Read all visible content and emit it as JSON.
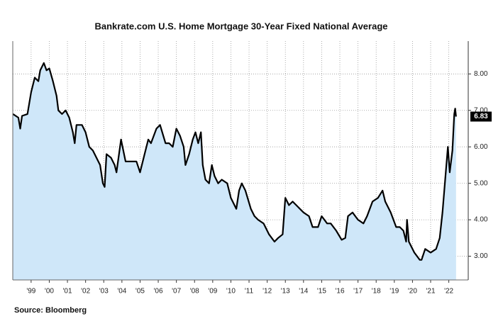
{
  "chart_data": {
    "type": "area",
    "title": "Bankrate.com U.S. Home Mortgage 30-Year Fixed National Average",
    "source": "Source: Bloomberg",
    "current_label": "6.83",
    "color": "#000000",
    "fill_color": "#cfe7f9",
    "grid": true,
    "ylim": [
      2.35,
      8.9
    ],
    "yticks": [
      {
        "value": 3,
        "label": "3.00"
      },
      {
        "value": 4,
        "label": "4.00"
      },
      {
        "value": 5,
        "label": "5.00"
      },
      {
        "value": 6,
        "label": "6.00"
      },
      {
        "value": 7,
        "label": "7.00"
      },
      {
        "value": 8,
        "label": "8.00"
      }
    ],
    "xlim": [
      1998.49,
      2023.57
    ],
    "xticks": [
      {
        "value": 1999.5,
        "label": "'99"
      },
      {
        "value": 2000.5,
        "label": "'00"
      },
      {
        "value": 2001.5,
        "label": "'01"
      },
      {
        "value": 2002.5,
        "label": "'02"
      },
      {
        "value": 2003.5,
        "label": "'03"
      },
      {
        "value": 2004.5,
        "label": "'04"
      },
      {
        "value": 2005.5,
        "label": "'05"
      },
      {
        "value": 2006.5,
        "label": "'06"
      },
      {
        "value": 2007.5,
        "label": "'07"
      },
      {
        "value": 2008.5,
        "label": "'08"
      },
      {
        "value": 2009.5,
        "label": "'09"
      },
      {
        "value": 2010.5,
        "label": "'10"
      },
      {
        "value": 2011.5,
        "label": "'11"
      },
      {
        "value": 2012.5,
        "label": "'12"
      },
      {
        "value": 2013.5,
        "label": "'13"
      },
      {
        "value": 2014.5,
        "label": "'14"
      },
      {
        "value": 2015.5,
        "label": "'15"
      },
      {
        "value": 2016.5,
        "label": "'16"
      },
      {
        "value": 2017.5,
        "label": "'17"
      },
      {
        "value": 2018.5,
        "label": "'18"
      },
      {
        "value": 2019.5,
        "label": "'19"
      },
      {
        "value": 2020.5,
        "label": "'20"
      },
      {
        "value": 2021.5,
        "label": "'21"
      },
      {
        "value": 2022.5,
        "label": "'22"
      }
    ],
    "x": [
      1998.5,
      1998.8,
      1998.9,
      1999.0,
      1999.3,
      1999.5,
      1999.7,
      1999.9,
      2000.0,
      2000.2,
      2000.35,
      2000.5,
      2000.7,
      2000.9,
      2001.0,
      2001.2,
      2001.4,
      2001.6,
      2001.8,
      2001.9,
      2002.0,
      2002.3,
      2002.5,
      2002.7,
      2002.9,
      2003.1,
      2003.3,
      2003.45,
      2003.55,
      2003.65,
      2003.9,
      2004.1,
      2004.2,
      2004.45,
      2004.7,
      2004.9,
      2005.1,
      2005.3,
      2005.5,
      2005.75,
      2005.95,
      2006.1,
      2006.4,
      2006.6,
      2006.9,
      2007.1,
      2007.3,
      2007.5,
      2007.7,
      2007.9,
      2008.0,
      2008.2,
      2008.4,
      2008.55,
      2008.7,
      2008.85,
      2008.95,
      2009.1,
      2009.3,
      2009.45,
      2009.6,
      2009.8,
      2010.0,
      2010.3,
      2010.5,
      2010.8,
      2010.95,
      2011.1,
      2011.3,
      2011.6,
      2011.8,
      2012.0,
      2012.3,
      2012.6,
      2012.9,
      2013.1,
      2013.35,
      2013.5,
      2013.7,
      2013.9,
      2014.1,
      2014.5,
      2014.8,
      2015.0,
      2015.3,
      2015.5,
      2015.8,
      2016.0,
      2016.3,
      2016.6,
      2016.8,
      2016.95,
      2017.2,
      2017.5,
      2017.8,
      2018.0,
      2018.3,
      2018.6,
      2018.85,
      2019.0,
      2019.3,
      2019.6,
      2019.8,
      2020.0,
      2020.15,
      2020.2,
      2020.3,
      2020.6,
      2020.9,
      2021.0,
      2021.2,
      2021.5,
      2021.8,
      2022.0,
      2022.15,
      2022.3,
      2022.45,
      2022.55,
      2022.7,
      2022.8,
      2022.85,
      2022.9
    ],
    "values": [
      6.9,
      6.8,
      6.5,
      6.85,
      6.9,
      7.5,
      7.9,
      7.8,
      8.1,
      8.3,
      8.1,
      8.15,
      7.8,
      7.4,
      7.0,
      6.9,
      7.0,
      6.8,
      6.4,
      6.1,
      6.6,
      6.6,
      6.4,
      6.0,
      5.9,
      5.7,
      5.5,
      5.0,
      4.9,
      5.8,
      5.7,
      5.5,
      5.3,
      6.2,
      5.6,
      5.6,
      5.6,
      5.6,
      5.3,
      5.8,
      6.2,
      6.1,
      6.5,
      6.6,
      6.1,
      6.1,
      6.0,
      6.5,
      6.3,
      6.0,
      5.5,
      5.8,
      6.2,
      6.4,
      6.1,
      6.4,
      5.5,
      5.1,
      5.0,
      5.5,
      5.2,
      5.0,
      5.1,
      5.0,
      4.6,
      4.3,
      4.8,
      5.0,
      4.8,
      4.3,
      4.1,
      4.0,
      3.9,
      3.6,
      3.4,
      3.5,
      3.6,
      4.6,
      4.4,
      4.5,
      4.4,
      4.2,
      4.1,
      3.8,
      3.8,
      4.1,
      3.9,
      3.9,
      3.7,
      3.45,
      3.5,
      4.1,
      4.2,
      4.0,
      3.9,
      4.1,
      4.5,
      4.6,
      4.8,
      4.5,
      4.2,
      3.8,
      3.8,
      3.7,
      3.4,
      4.0,
      3.4,
      3.1,
      2.9,
      2.9,
      3.2,
      3.1,
      3.2,
      3.5,
      4.2,
      5.1,
      6.0,
      5.3,
      5.9,
      6.9,
      7.05,
      6.83
    ]
  }
}
